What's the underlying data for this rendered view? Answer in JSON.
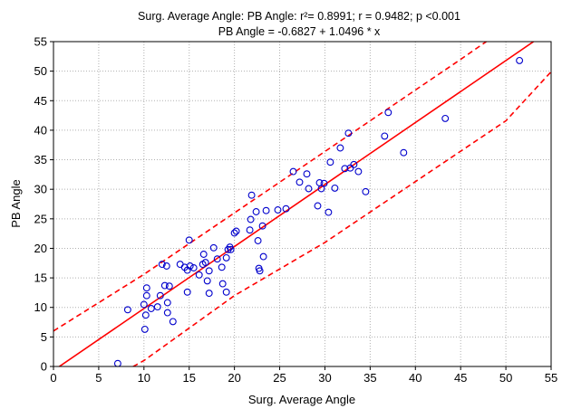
{
  "chart_data": {
    "type": "scatter",
    "title_lines": [
      "Surg. Average Angle: PB Angle: r²= 0.8991; r = 0.9482; p <0.001",
      "PB Angle = -0.6827 + 1.0496 * x"
    ],
    "xlabel": "Surg. Average Angle",
    "ylabel": "PB Angle",
    "xlim": [
      0,
      55
    ],
    "ylim": [
      0,
      55
    ],
    "xticks": [
      0,
      5,
      10,
      15,
      20,
      25,
      30,
      35,
      40,
      45,
      50,
      55
    ],
    "yticks": [
      0,
      5,
      10,
      15,
      20,
      25,
      30,
      35,
      40,
      45,
      50,
      55
    ],
    "grid": true,
    "marker_color": "#0000cc",
    "line_color": "#ff0000",
    "regression": {
      "intercept": -0.6827,
      "slope": 1.0496
    },
    "confidence_band": {
      "upper": [
        [
          0,
          6.0
        ],
        [
          10,
          15.6
        ],
        [
          20,
          26.0
        ],
        [
          30,
          36.4
        ],
        [
          40,
          46.8
        ],
        [
          45,
          52.0
        ],
        [
          50,
          57.3
        ]
      ],
      "lower": [
        [
          0,
          -7.4
        ],
        [
          10,
          1.0
        ],
        [
          20,
          12.0
        ],
        [
          30,
          21.0
        ],
        [
          40,
          31.3
        ],
        [
          50,
          41.6
        ],
        [
          55,
          49.9
        ]
      ]
    },
    "points": [
      [
        7.1,
        0.5
      ],
      [
        8.2,
        9.6
      ],
      [
        10.0,
        10.5
      ],
      [
        10.1,
        6.3
      ],
      [
        10.2,
        8.7
      ],
      [
        10.3,
        12.0
      ],
      [
        10.3,
        13.3
      ],
      [
        10.8,
        9.8
      ],
      [
        11.5,
        10.1
      ],
      [
        11.8,
        12.0
      ],
      [
        12.0,
        17.3
      ],
      [
        12.3,
        13.7
      ],
      [
        12.5,
        17.0
      ],
      [
        12.6,
        9.1
      ],
      [
        12.6,
        10.8
      ],
      [
        12.8,
        13.6
      ],
      [
        13.2,
        7.6
      ],
      [
        14.0,
        17.3
      ],
      [
        14.5,
        16.8
      ],
      [
        14.8,
        12.6
      ],
      [
        14.8,
        16.3
      ],
      [
        15.0,
        21.4
      ],
      [
        15.1,
        17.0
      ],
      [
        15.5,
        16.7
      ],
      [
        16.1,
        15.5
      ],
      [
        16.5,
        17.3
      ],
      [
        16.6,
        19.0
      ],
      [
        16.8,
        17.6
      ],
      [
        17.0,
        14.5
      ],
      [
        17.2,
        16.2
      ],
      [
        17.2,
        12.4
      ],
      [
        17.7,
        20.1
      ],
      [
        18.1,
        18.2
      ],
      [
        18.6,
        16.8
      ],
      [
        18.7,
        14.0
      ],
      [
        19.1,
        12.6
      ],
      [
        19.1,
        18.4
      ],
      [
        19.3,
        19.8
      ],
      [
        19.5,
        20.2
      ],
      [
        19.6,
        19.8
      ],
      [
        20.0,
        22.6
      ],
      [
        20.2,
        22.9
      ],
      [
        21.7,
        23.1
      ],
      [
        21.8,
        24.9
      ],
      [
        21.9,
        29.0
      ],
      [
        22.4,
        26.2
      ],
      [
        22.6,
        21.3
      ],
      [
        22.7,
        16.6
      ],
      [
        22.8,
        16.2
      ],
      [
        23.1,
        23.8
      ],
      [
        23.2,
        18.6
      ],
      [
        23.5,
        26.4
      ],
      [
        24.8,
        26.5
      ],
      [
        25.7,
        26.7
      ],
      [
        26.5,
        33.0
      ],
      [
        27.2,
        31.2
      ],
      [
        28.0,
        32.6
      ],
      [
        28.2,
        30.1
      ],
      [
        29.2,
        27.2
      ],
      [
        29.4,
        31.1
      ],
      [
        29.6,
        30.1
      ],
      [
        29.9,
        31.0
      ],
      [
        30.4,
        26.1
      ],
      [
        30.6,
        34.6
      ],
      [
        31.1,
        30.2
      ],
      [
        31.7,
        37.0
      ],
      [
        32.2,
        33.5
      ],
      [
        32.6,
        39.5
      ],
      [
        32.8,
        33.6
      ],
      [
        33.2,
        34.2
      ],
      [
        33.7,
        33.0
      ],
      [
        34.5,
        29.6
      ],
      [
        36.6,
        39.0
      ],
      [
        37.0,
        43.0
      ],
      [
        38.7,
        36.2
      ],
      [
        43.3,
        42.0
      ],
      [
        51.5,
        51.8
      ]
    ]
  }
}
